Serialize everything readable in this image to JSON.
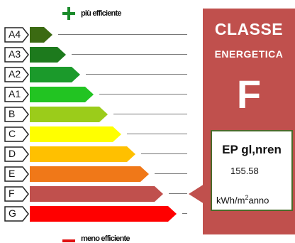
{
  "legend": {
    "top": "più efficiente",
    "bottom": "meno efficiente"
  },
  "classes": [
    {
      "label": "A4",
      "color": "#3b6a12",
      "length": 1
    },
    {
      "label": "A3",
      "color": "#1d7a1d",
      "length": 2
    },
    {
      "label": "A2",
      "color": "#1b9a2b",
      "length": 3
    },
    {
      "label": "A1",
      "color": "#22c422",
      "length": 4
    },
    {
      "label": "B",
      "color": "#9bcc1a",
      "length": 5
    },
    {
      "label": "C",
      "color": "#ffff00",
      "length": 6
    },
    {
      "label": "D",
      "color": "#ffc000",
      "length": 7
    },
    {
      "label": "E",
      "color": "#f07818",
      "length": 8
    },
    {
      "label": "F",
      "color": "#c0504d",
      "length": 9
    },
    {
      "label": "G",
      "color": "#ff0000",
      "length": 10
    }
  ],
  "panel": {
    "title_1": "CLASSE",
    "title_2": "ENERGETICA",
    "grade": "F",
    "color": "#c0504d",
    "indicator_class": "F"
  },
  "ep_box": {
    "label": "EP gl,nren",
    "value": "155.58",
    "unit_prefix": "kWh/m",
    "unit_sup": "2",
    "unit_suffix": "anno"
  }
}
